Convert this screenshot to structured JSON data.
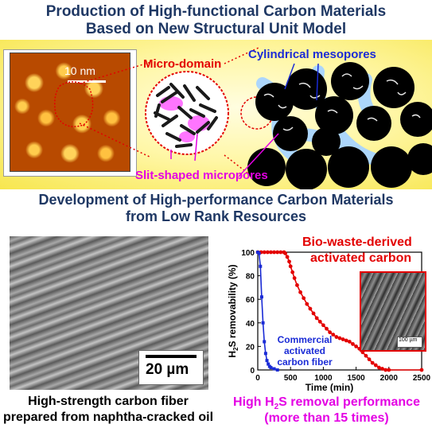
{
  "titles": {
    "top_line1": "Production of High-functional Carbon Materials",
    "top_line2": "Based on New Structural Unit Model",
    "mid_line1": "Development of High-performance Carbon Materials",
    "mid_line2": "from Low Rank Resources"
  },
  "diagram": {
    "afm_scale": "10 nm",
    "micro_domain": "Micro-domain",
    "mesopores": "Cylindrical mesopores",
    "micropores": "Slit-shaped micropores"
  },
  "fiber": {
    "scale_bar": "20 µm",
    "caption_line1": "High-strength carbon fiber",
    "caption_line2": "prepared from naphtha-cracked oil"
  },
  "result": {
    "caption_line1_pre": "High H",
    "caption_line1_sub": "2",
    "caption_line1_post": "S removal performance",
    "caption_line2": "(more than 15 times)",
    "inset_scale": "100 µm"
  },
  "colors": {
    "title": "#1f3864",
    "bio": "#e30000",
    "commercial": "#1a2bd6",
    "accent": "#e400e4"
  },
  "chart_data": {
    "type": "line",
    "xlabel": "Time (min)",
    "ylabel_pre": "H",
    "ylabel_sub": "2",
    "ylabel_post": "S removability (%)",
    "xlim": [
      0,
      2500
    ],
    "ylim": [
      0,
      100
    ],
    "xticks": [
      0,
      500,
      1000,
      1500,
      2000,
      2500
    ],
    "yticks": [
      0,
      20,
      40,
      60,
      80,
      100
    ],
    "xtick_labels": [
      "0",
      "500",
      "1000",
      "1500",
      "2000",
      "2500"
    ],
    "ytick_labels": [
      "0",
      "20",
      "40",
      "60",
      "80",
      "100"
    ],
    "series": [
      {
        "name_line1": "Bio-waste-derived",
        "name_line2": "activated carbon",
        "color": "#e30000",
        "x": [
          0,
          50,
          100,
          150,
          200,
          250,
          300,
          350,
          400,
          420,
          450,
          480,
          500,
          530,
          560,
          600,
          650,
          700,
          750,
          800,
          850,
          900,
          950,
          1000,
          1050,
          1100,
          1150,
          1200,
          1250,
          1300,
          1350,
          1400,
          1450,
          1500,
          1550,
          1600,
          1650,
          1700,
          1750,
          1800,
          1850,
          1900,
          1950,
          2000,
          2500
        ],
        "y": [
          100,
          100,
          100,
          100,
          100,
          100,
          100,
          100,
          100,
          99,
          96,
          92,
          88,
          83,
          78,
          72,
          66,
          61,
          56,
          52,
          48,
          44,
          41,
          38,
          35,
          32,
          30,
          28,
          27,
          26,
          25,
          24,
          22,
          20,
          18,
          15,
          12,
          9,
          6,
          4,
          2,
          1,
          0,
          0,
          0
        ]
      },
      {
        "name_line1": "Commercial",
        "name_line2": "activated",
        "name_line3": "carbon fiber",
        "color": "#1a2bd6",
        "x": [
          0,
          20,
          40,
          60,
          80,
          100,
          120,
          140,
          160,
          180,
          200,
          250,
          300
        ],
        "y": [
          100,
          99,
          88,
          62,
          40,
          24,
          14,
          8,
          5,
          3,
          2,
          1,
          0
        ]
      }
    ]
  }
}
